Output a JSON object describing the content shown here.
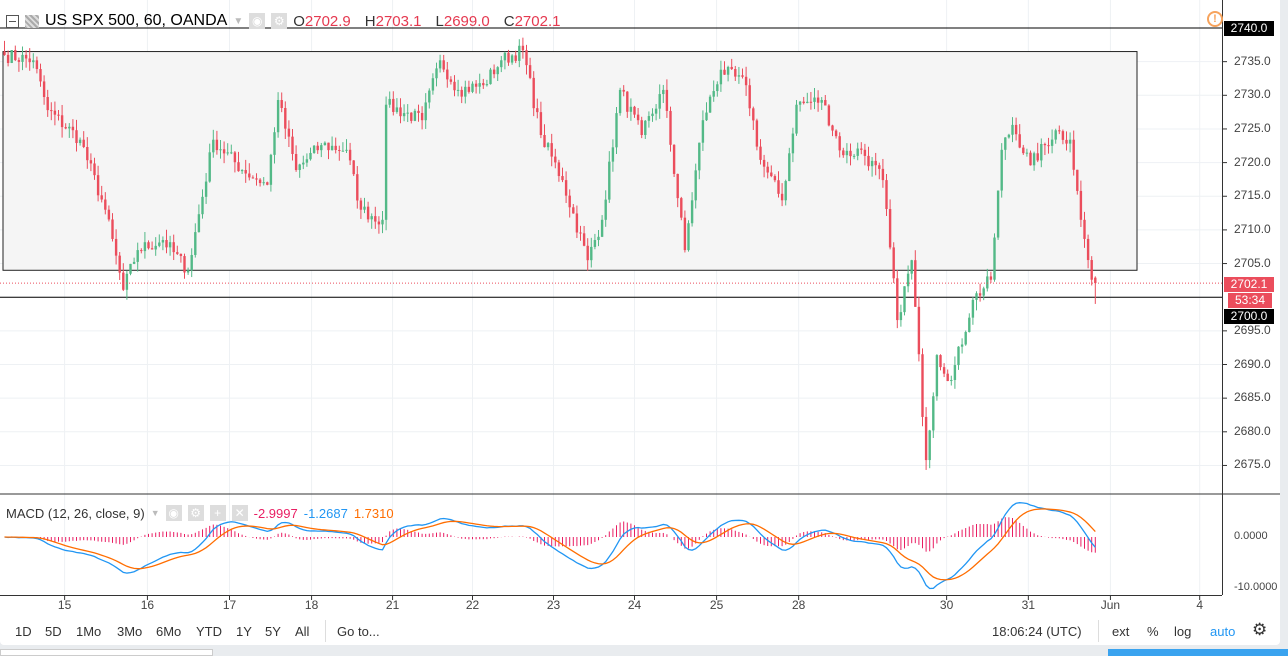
{
  "legend": {
    "symbol": "US SPX 500, 60, OANDA",
    "open_label": "O",
    "open": "2702.9",
    "high_label": "H",
    "high": "2703.1",
    "low_label": "L",
    "low": "2699.0",
    "close_label": "C",
    "close": "2702.1"
  },
  "macd_legend": {
    "title": "MACD (12, 26, close, 9)",
    "hist": "-2.9997",
    "macd": "-1.2687",
    "signal": "1.7310"
  },
  "price_labels": {
    "top_line": "2740.0",
    "current": "2702.1",
    "countdown": "53:34",
    "support_line": "2700.0"
  },
  "toolbar": {
    "ranges": [
      "1D",
      "5D",
      "1Mo",
      "3Mo",
      "6Mo",
      "YTD",
      "1Y",
      "5Y",
      "All"
    ],
    "goto": "Go to...",
    "clock": "18:06:24 (UTC)",
    "ext": "ext",
    "percent": "%",
    "log": "log",
    "auto": "auto"
  },
  "colors": {
    "up": "#53b987",
    "down": "#eb4d5c",
    "macd": "#2196f3",
    "signal": "#ff6d00",
    "hist": "#e91e63",
    "box": "#f5f5f5"
  },
  "chart_data": {
    "type": "candlestick",
    "y_ticks": [
      "2735.0",
      "2730.0",
      "2725.0",
      "2720.0",
      "2715.0",
      "2710.0",
      "2705.0",
      "2695.0",
      "2690.0",
      "2685.0",
      "2680.0",
      "2675.0"
    ],
    "y_tick_values": [
      2735,
      2730,
      2725,
      2720,
      2715,
      2710,
      2705,
      2695,
      2690,
      2685,
      2680,
      2675
    ],
    "ylim": [
      2667.5,
      2743
    ],
    "x_ticks": [
      {
        "label": "15",
        "bar": 16.7
      },
      {
        "label": "16",
        "bar": 39.7
      },
      {
        "label": "17",
        "bar": 62.5
      },
      {
        "label": "18",
        "bar": 85.3
      },
      {
        "label": "21",
        "bar": 107.8
      },
      {
        "label": "22",
        "bar": 130
      },
      {
        "label": "23",
        "bar": 152.5
      },
      {
        "label": "24",
        "bar": 175
      },
      {
        "label": "25",
        "bar": 197.8
      },
      {
        "label": "28",
        "bar": 220.6
      },
      {
        "label": "30",
        "bar": 261.7
      },
      {
        "label": "31",
        "bar": 284.4
      },
      {
        "label": "Jun",
        "bar": 307.2
      },
      {
        "label": "4",
        "bar": 332
      }
    ],
    "close_path": [
      [
        0,
        2736.0
      ],
      [
        8,
        2735.2
      ],
      [
        12,
        2727.8
      ],
      [
        21,
        2723.4
      ],
      [
        28,
        2713.0
      ],
      [
        33,
        2701.1
      ],
      [
        37,
        2707.0
      ],
      [
        44,
        2708.5
      ],
      [
        51,
        2704.0
      ],
      [
        58,
        2723.4
      ],
      [
        66,
        2718.9
      ],
      [
        73,
        2716.7
      ],
      [
        76,
        2729.3
      ],
      [
        81,
        2718.9
      ],
      [
        88,
        2722.6
      ],
      [
        95,
        2721.9
      ],
      [
        99,
        2713.0
      ],
      [
        105,
        2711.5
      ],
      [
        106,
        2728.6
      ],
      [
        116,
        2726.3
      ],
      [
        121,
        2735.2
      ],
      [
        126,
        2730.8
      ],
      [
        133,
        2731.5
      ],
      [
        138,
        2735.2
      ],
      [
        144,
        2736.7
      ],
      [
        149,
        2724.1
      ],
      [
        155,
        2717.4
      ],
      [
        162,
        2705.5
      ],
      [
        166,
        2711.5
      ],
      [
        171,
        2730.8
      ],
      [
        177,
        2724.1
      ],
      [
        183,
        2730.8
      ],
      [
        189,
        2707.0
      ],
      [
        194,
        2726.3
      ],
      [
        199,
        2733.8
      ],
      [
        206,
        2731.5
      ],
      [
        210,
        2720.4
      ],
      [
        216,
        2714.4
      ],
      [
        220,
        2728.6
      ],
      [
        227,
        2729.3
      ],
      [
        233,
        2721.1
      ],
      [
        238,
        2721.9
      ],
      [
        244,
        2717.4
      ],
      [
        248,
        2696.6
      ],
      [
        252,
        2705.5
      ],
      [
        256,
        2675.8
      ],
      [
        259,
        2691.4
      ],
      [
        263,
        2687.7
      ],
      [
        269,
        2699.6
      ],
      [
        274,
        2702.6
      ],
      [
        277,
        2721.9
      ],
      [
        280,
        2725.6
      ],
      [
        285,
        2719.6
      ],
      [
        292,
        2724.8
      ],
      [
        296,
        2723.4
      ],
      [
        299,
        2711.5
      ],
      [
        302,
        2702.6
      ],
      [
        303,
        2702.1
      ]
    ],
    "last_bar": {
      "open": 2702.9,
      "high": 2703.1,
      "low": 2699.0,
      "close": 2702.1
    },
    "drawings": {
      "rectangle": {
        "top": 2736.5,
        "bottom": 2704.0
      },
      "hlines": [
        2740.0,
        2700.0
      ]
    },
    "macd": {
      "params": [
        12,
        26,
        9
      ],
      "ylim": [
        -11,
        8
      ],
      "ticks": [
        "0.0000",
        "-10.0000"
      ],
      "tick_values": [
        0,
        -10
      ]
    }
  }
}
